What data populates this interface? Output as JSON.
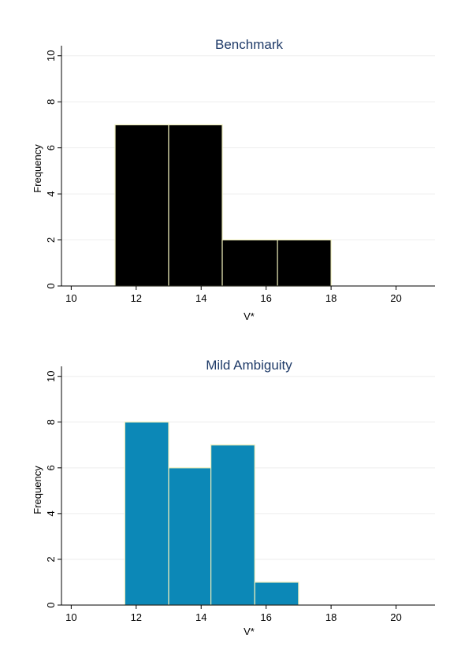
{
  "chart_data": [
    {
      "type": "bar",
      "title": "Benchmark",
      "xlabel": "V*",
      "ylabel": "Frequency",
      "xlim": [
        9.7,
        21.2
      ],
      "ylim": [
        0,
        10.3
      ],
      "x_ticks": [
        10,
        12,
        14,
        16,
        18,
        20
      ],
      "y_ticks": [
        0,
        2,
        4,
        6,
        8,
        10
      ],
      "grid": true,
      "bar_color": "#000000",
      "bins": [
        {
          "start": 11.35,
          "end": 13.0,
          "value": 7
        },
        {
          "start": 13.0,
          "end": 14.65,
          "value": 7
        },
        {
          "start": 14.65,
          "end": 16.35,
          "value": 2
        },
        {
          "start": 16.35,
          "end": 18.0,
          "value": 2
        }
      ]
    },
    {
      "type": "bar",
      "title": "Mild Ambiguity",
      "xlabel": "V*",
      "ylabel": "Frequency",
      "xlim": [
        9.7,
        21.2
      ],
      "ylim": [
        0,
        10.3
      ],
      "x_ticks": [
        10,
        12,
        14,
        16,
        18,
        20
      ],
      "y_ticks": [
        0,
        2,
        4,
        6,
        8,
        10
      ],
      "grid": true,
      "bar_color": "#0c88b7",
      "bins": [
        {
          "start": 11.65,
          "end": 13.0,
          "value": 8
        },
        {
          "start": 13.0,
          "end": 14.3,
          "value": 6
        },
        {
          "start": 14.3,
          "end": 15.65,
          "value": 7
        },
        {
          "start": 15.65,
          "end": 17.0,
          "value": 1
        }
      ]
    }
  ]
}
